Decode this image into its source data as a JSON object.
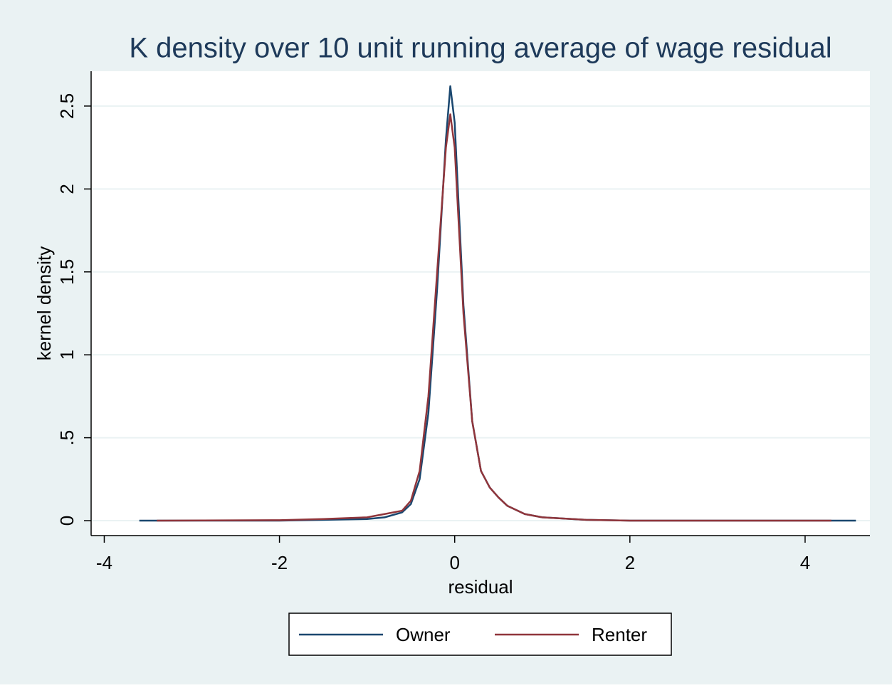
{
  "chart_data": {
    "type": "line",
    "title": "K density over 10 unit running average of wage residual",
    "x_label": "residual",
    "y_label": "kernel density",
    "xlim": [
      -4.15,
      4.74
    ],
    "xticks": [
      -4,
      -2,
      0,
      2,
      4
    ],
    "ylim": [
      -0.09,
      2.71
    ],
    "yticks": [
      0,
      {
        "value": 0.5,
        "label": ".5"
      },
      1,
      1.5,
      2,
      2.5
    ],
    "grid": true,
    "legend": "bottom",
    "series": [
      {
        "name": "Owner",
        "color": "#1a476f",
        "x": [
          -3.6,
          -3,
          -2,
          -1.5,
          -1,
          -0.8,
          -0.6,
          -0.5,
          -0.4,
          -0.3,
          -0.2,
          -0.1,
          -0.05,
          0,
          0.1,
          0.2,
          0.3,
          0.4,
          0.5,
          0.6,
          0.8,
          1,
          1.5,
          2,
          3,
          4,
          4.58
        ],
        "values": [
          0,
          0,
          0,
          0.005,
          0.01,
          0.02,
          0.05,
          0.1,
          0.25,
          0.65,
          1.4,
          2.3,
          2.62,
          2.4,
          1.3,
          0.6,
          0.3,
          0.2,
          0.14,
          0.09,
          0.04,
          0.02,
          0.005,
          0,
          0,
          0,
          0
        ]
      },
      {
        "name": "Renter",
        "color": "#90353b",
        "x": [
          -3.4,
          -2,
          -1.5,
          -1,
          -0.8,
          -0.6,
          -0.5,
          -0.4,
          -0.3,
          -0.2,
          -0.1,
          -0.05,
          0,
          0.1,
          0.2,
          0.3,
          0.4,
          0.5,
          0.6,
          0.8,
          1,
          1.5,
          2,
          3,
          4.3
        ],
        "values": [
          0,
          0.003,
          0.01,
          0.02,
          0.04,
          0.06,
          0.12,
          0.3,
          0.75,
          1.5,
          2.25,
          2.45,
          2.25,
          1.25,
          0.6,
          0.3,
          0.2,
          0.14,
          0.09,
          0.04,
          0.02,
          0.005,
          0,
          0,
          0
        ]
      }
    ]
  }
}
